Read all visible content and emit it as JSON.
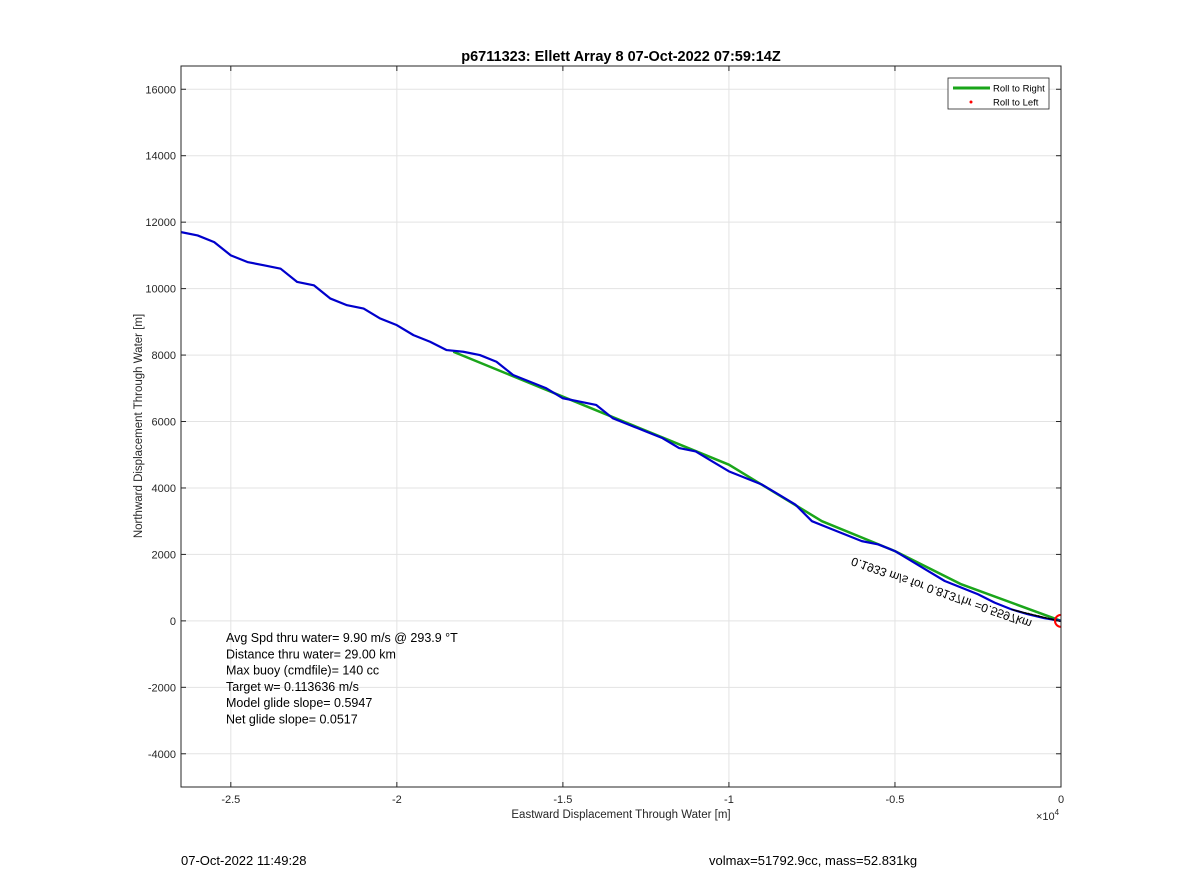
{
  "chart_data": {
    "type": "line",
    "title": "p6711323: Ellett Array 8 07-Oct-2022 07:59:14Z",
    "xlabel": "Eastward Displacement Through Water [m]",
    "ylabel": "Northward Displacement Through Water [m]",
    "xlim": [
      -26500,
      0
    ],
    "ylim": [
      -5000,
      16700
    ],
    "x_ticks": [
      -25000,
      -20000,
      -15000,
      -10000,
      -5000,
      0
    ],
    "x_tick_labels": [
      "-2.5",
      "-2",
      "-1.5",
      "-1",
      "-0.5",
      "0"
    ],
    "x_exponent_label": "×10",
    "x_exponent_power": "4",
    "y_ticks": [
      -4000,
      -2000,
      0,
      2000,
      4000,
      6000,
      8000,
      10000,
      12000,
      14000,
      16000
    ],
    "y_tick_labels": [
      "-4000",
      "-2000",
      "0",
      "2000",
      "4000",
      "6000",
      "8000",
      "10000",
      "12000",
      "14000",
      "16000"
    ],
    "grid": true,
    "legend_position": "top-right",
    "series": [
      {
        "name": "Roll to Right",
        "color": "#1aa51a",
        "style": "line",
        "x": [
          -18300,
          -10000,
          -7200,
          -5000,
          -3000,
          0
        ],
        "y": [
          8100,
          4700,
          3000,
          2100,
          1100,
          0
        ]
      },
      {
        "name": "Roll to Left",
        "color": "#ff0000",
        "style": "marker",
        "x": [
          0
        ],
        "y": [
          0
        ]
      },
      {
        "color": "#0000cc",
        "style": "line",
        "x": [
          -26500,
          -26000,
          -25500,
          -25000,
          -24500,
          -24000,
          -23500,
          -23000,
          -22500,
          -22000,
          -21500,
          -21000,
          -20500,
          -20000,
          -19500,
          -19000,
          -18500,
          -18000,
          -17500,
          -17000,
          -16500,
          -16000,
          -15500,
          -15000,
          -14500,
          -14000,
          -13500,
          -13000,
          -12500,
          -12000,
          -11500,
          -11000,
          -10500,
          -10000,
          -9500,
          -9000,
          -8500,
          -8000,
          -7500,
          -7000,
          -6500,
          -6000,
          -5500,
          -5000,
          -4500,
          -4000,
          -3500,
          -3000,
          -2500,
          -2000,
          -1500,
          -1000,
          -500,
          0
        ],
        "y": [
          11700,
          11600,
          11400,
          11000,
          10800,
          10700,
          10600,
          10200,
          10100,
          9700,
          9500,
          9400,
          9100,
          8900,
          8600,
          8400,
          8150,
          8100,
          8000,
          7800,
          7400,
          7200,
          7000,
          6700,
          6600,
          6500,
          6100,
          5900,
          5700,
          5500,
          5200,
          5100,
          4800,
          4500,
          4300,
          4100,
          3800,
          3500,
          3000,
          2800,
          2600,
          2400,
          2300,
          2100,
          1800,
          1500,
          1200,
          1000,
          800,
          550,
          350,
          200,
          80,
          0
        ]
      }
    ],
    "annotations": [
      "Avg Spd thru water=  9.90 m/s @ 293.9 °T",
      "Distance thru water= 29.00 km",
      "Max buoy (cmdfile)= 140 cc",
      "Target w= 0.113636 m/s",
      "Model glide slope= 0.5947",
      "Net glide slope= 0.0517"
    ],
    "rotated_annotation": "0.1933 m/s for 0.8137hr =0.5597km"
  },
  "footer": {
    "left": "07-Oct-2022 11:49:28",
    "right": "volmax=51792.9cc, mass=52.831kg"
  }
}
